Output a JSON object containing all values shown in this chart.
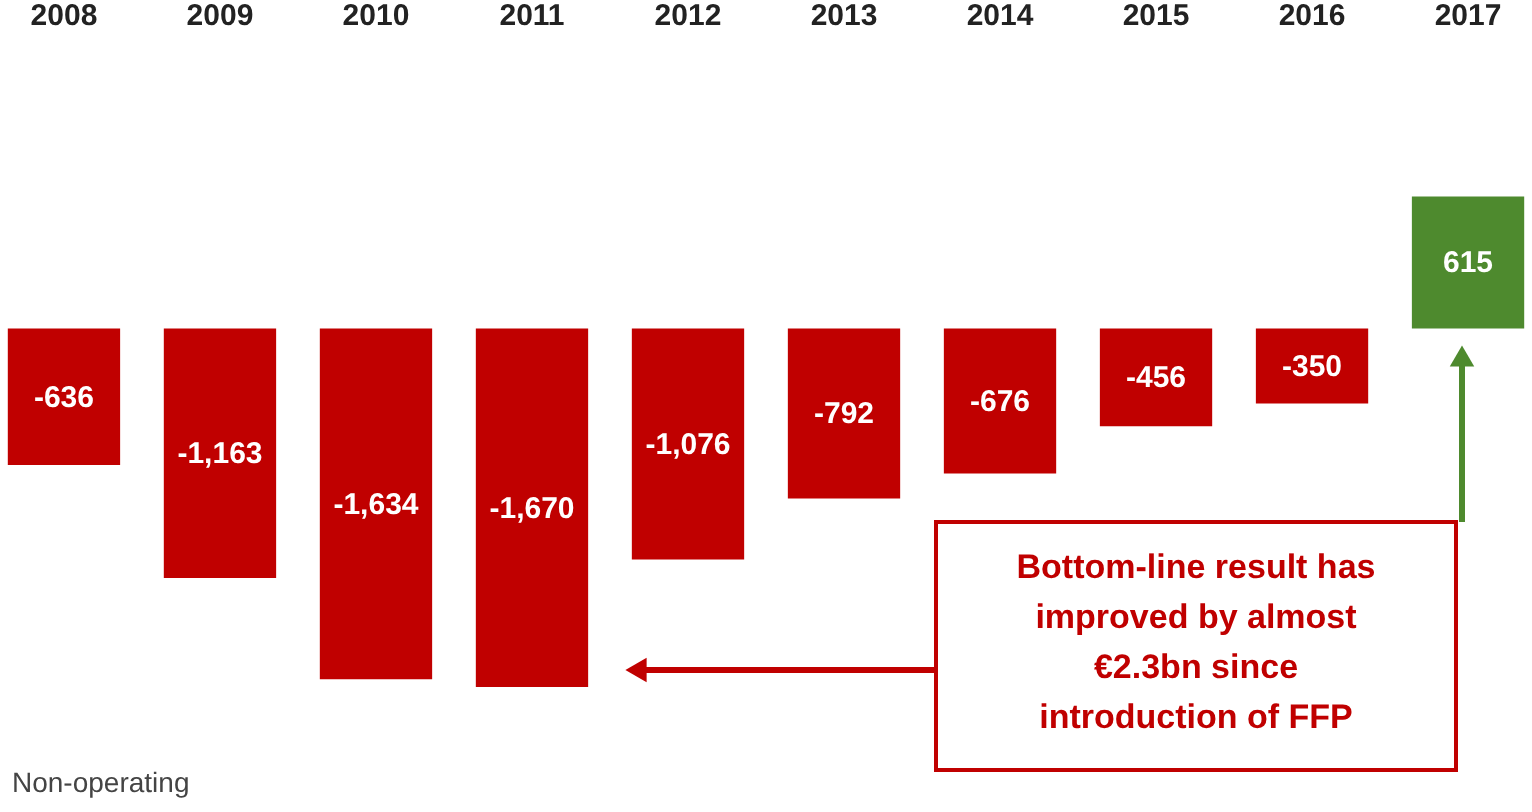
{
  "chart_data": {
    "type": "bar",
    "categories": [
      "2008",
      "2009",
      "2010",
      "2011",
      "2012",
      "2013",
      "2014",
      "2015",
      "2016",
      "2017"
    ],
    "values": [
      -636,
      -1163,
      -1634,
      -1670,
      -1076,
      -792,
      -676,
      -456,
      -350,
      615
    ],
    "colors": [
      "#c00000",
      "#c00000",
      "#c00000",
      "#c00000",
      "#c00000",
      "#c00000",
      "#c00000",
      "#c00000",
      "#c00000",
      "#4e8a2e"
    ],
    "value_labels": [
      "-636",
      "-1,163",
      "-1,634",
      "-1,670",
      "-1,076",
      "-792",
      "-676",
      "-456",
      "-350",
      "615"
    ],
    "grid": false,
    "annotations": [
      "Bottom-line result has\nimproved by almost\n€2.3bn since\nintroduction of FFP",
      "Non-operating"
    ]
  }
}
